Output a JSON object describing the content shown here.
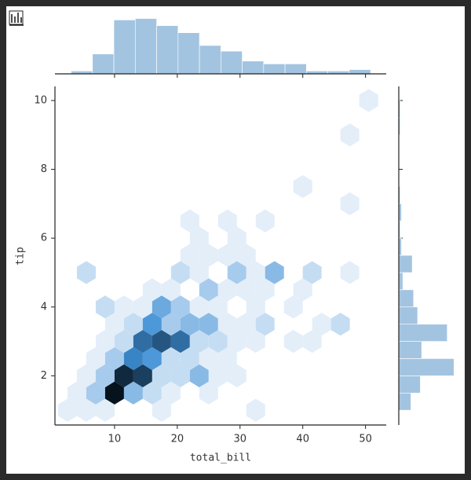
{
  "chart_data": [
    {
      "type": "hexbin",
      "xlabel": "total_bill",
      "ylabel": "tip",
      "x": [
        2.5,
        5.5,
        8.5,
        17.5,
        32.5,
        4,
        7,
        10,
        13,
        16,
        19,
        25,
        5.5,
        8.5,
        11.5,
        14.5,
        17.5,
        20.5,
        23.5,
        26.5,
        29.5,
        7,
        10,
        13,
        16,
        19,
        22,
        25,
        28,
        8.5,
        11.5,
        14.5,
        17.5,
        20.5,
        23.5,
        26.5,
        29.5,
        32.5,
        38.5,
        41.5,
        10,
        13,
        16,
        19,
        22,
        25,
        28,
        31,
        34,
        43,
        46,
        8.5,
        11.5,
        14.5,
        17.5,
        20.5,
        23.5,
        26.5,
        32.5,
        38.5,
        16,
        19,
        25,
        28,
        31,
        34,
        40,
        5.5,
        20.5,
        23.5,
        29.5,
        32.5,
        35.5,
        41.5,
        47.5,
        22,
        25,
        28,
        31,
        23.5,
        29.5,
        22,
        28,
        34,
        47.5,
        40,
        47.5,
        50.5
      ],
      "y": [
        1,
        1,
        1,
        1,
        1,
        1.5,
        1.5,
        1.5,
        1.5,
        1.5,
        1.5,
        1.5,
        2,
        2,
        2,
        2,
        2,
        2,
        2,
        2,
        2,
        2.5,
        2.5,
        2.5,
        2.5,
        2.5,
        2.5,
        2.5,
        2.5,
        3,
        3,
        3,
        3,
        3,
        3,
        3,
        3,
        3,
        3,
        3,
        3.5,
        3.5,
        3.5,
        3.5,
        3.5,
        3.5,
        3.5,
        3.5,
        3.5,
        3.5,
        3.5,
        4,
        4,
        4,
        4,
        4,
        4,
        4,
        4,
        4,
        4.5,
        4.5,
        4.5,
        4.5,
        4.5,
        4.5,
        4.5,
        5,
        5,
        5,
        5,
        5,
        5,
        5,
        5,
        5.5,
        5.5,
        5.5,
        5.5,
        6,
        6,
        6.5,
        6.5,
        6.5,
        7,
        7.5,
        9,
        10
      ],
      "counts": [
        1,
        1,
        1,
        1,
        1,
        1,
        3,
        12,
        4,
        2,
        1,
        1,
        1,
        3,
        11,
        10,
        2,
        2,
        4,
        1,
        1,
        1,
        3,
        7,
        6,
        2,
        2,
        1,
        1,
        1,
        2,
        8,
        9,
        8,
        2,
        2,
        1,
        1,
        1,
        1,
        1,
        2,
        6,
        3,
        4,
        4,
        1,
        1,
        2,
        1,
        2,
        2,
        1,
        1,
        5,
        3,
        1,
        1,
        1,
        1,
        1,
        1,
        3,
        1,
        1,
        1,
        1,
        2,
        2,
        1,
        3,
        1,
        4,
        2,
        1,
        1,
        1,
        1,
        1,
        1,
        1,
        1,
        1,
        1,
        1,
        1,
        1,
        1
      ],
      "cmap": [
        "#e3eef9",
        "#3e8fd5",
        "#06121c"
      ],
      "xlim": [
        0.5,
        53.3
      ],
      "ylim": [
        0.57,
        10.41
      ],
      "xticks": [
        10,
        20,
        30,
        40,
        50
      ],
      "yticks": [
        2,
        4,
        6,
        8,
        10
      ]
    },
    {
      "type": "histogram",
      "orientation": "vertical",
      "bins": [
        3.07,
        6.48,
        9.89,
        13.3,
        16.71,
        20.12,
        23.53,
        26.94,
        30.35,
        33.76,
        37.17,
        40.58,
        43.99,
        47.4,
        50.81
      ],
      "counts": [
        2,
        14,
        38,
        39,
        34,
        29,
        20,
        16,
        9,
        7,
        7,
        2,
        2,
        3
      ],
      "ylim": [
        0,
        41
      ],
      "color": "#a3c4e0"
    },
    {
      "type": "histogram",
      "orientation": "horizontal",
      "bins": [
        1,
        1.5,
        2,
        2.5,
        3,
        3.5,
        4,
        4.5,
        5,
        5.5,
        6,
        6.5,
        7,
        7.5,
        8,
        8.5,
        9,
        9.5,
        10
      ],
      "counts": [
        9,
        16,
        41,
        17,
        36,
        14,
        11,
        3,
        10,
        2,
        1,
        2,
        1,
        0,
        0,
        0,
        1,
        1
      ],
      "xlim": [
        0,
        42
      ],
      "color": "#a3c4e0"
    }
  ]
}
